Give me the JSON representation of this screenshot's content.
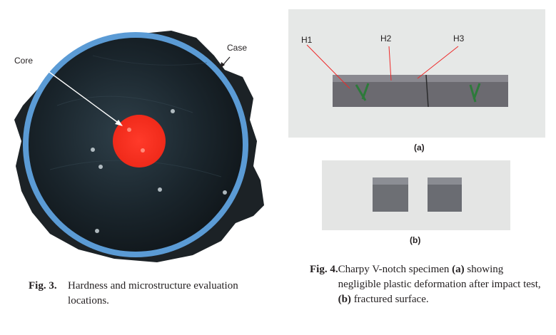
{
  "figure3": {
    "labels": {
      "core": "Core",
      "case": "Case"
    },
    "caption": {
      "number": "Fig. 3.",
      "text": "Hardness and microstructure evaluation locations."
    }
  },
  "figure4": {
    "panel_a": {
      "labels": [
        "H1",
        "H2",
        "H3"
      ],
      "sublabel": "(a)"
    },
    "panel_b": {
      "sublabel": "(b)"
    },
    "caption": {
      "number": "Fig. 4.",
      "part1": "Charpy V-notch specimen ",
      "a": "(a)",
      "part2": " showing negligible plastic deformation after impact test, ",
      "b": "(b)",
      "part3": " fractured surface."
    }
  }
}
